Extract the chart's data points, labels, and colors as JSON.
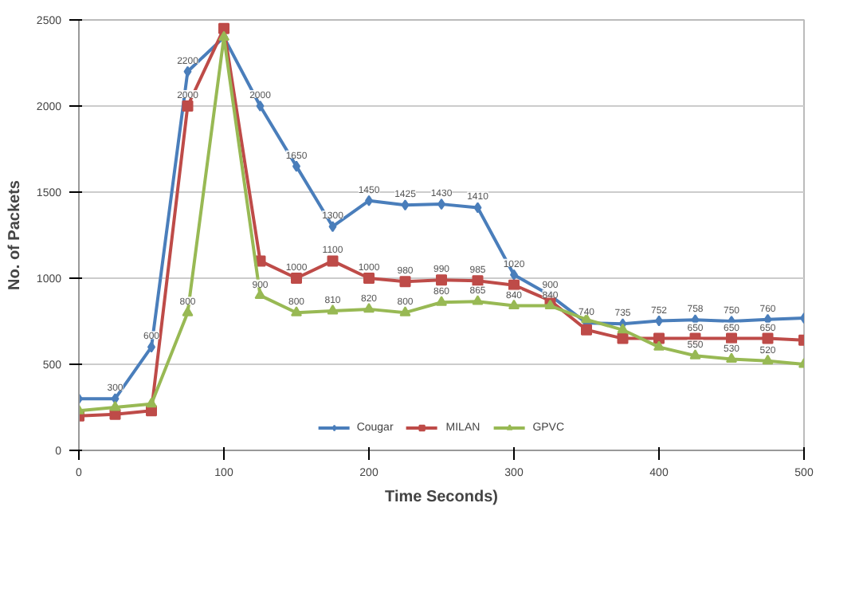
{
  "chart_data": {
    "type": "line",
    "xlabel": "Time Seconds)",
    "ylabel": "No. of Packets",
    "x": [
      0,
      25,
      50,
      75,
      100,
      125,
      150,
      175,
      200,
      225,
      250,
      275,
      300,
      325,
      350,
      375,
      400,
      425,
      450,
      475,
      500
    ],
    "xlim": [
      0,
      500
    ],
    "xticks": [
      0,
      100,
      200,
      300,
      400,
      500
    ],
    "ylim": [
      0,
      2500
    ],
    "yticks": [
      0,
      500,
      1000,
      1500,
      2000,
      2500
    ],
    "grid": "y",
    "legend": "bottom",
    "series": [
      {
        "name": "Cougar",
        "color": "#4a7ebb",
        "marker": "diamond",
        "values": [
          300,
          300,
          600,
          2200,
          2400,
          2000,
          1650,
          1300,
          1450,
          1425,
          1430,
          1410,
          1020,
          900,
          740,
          735,
          752,
          758,
          750,
          760,
          768
        ],
        "value_labels": [
          null,
          "300",
          "600",
          "2200",
          null,
          "2000",
          "1650",
          "1300",
          "1450",
          "1425",
          "1430",
          "1410",
          "1020",
          "900",
          "740",
          "735",
          "752",
          "758",
          "750",
          "760",
          null
        ]
      },
      {
        "name": "MILAN",
        "color": "#be4b48",
        "marker": "square",
        "values": [
          200,
          210,
          230,
          2000,
          2450,
          1100,
          1000,
          1100,
          1000,
          980,
          990,
          985,
          960,
          870,
          700,
          650,
          650,
          650,
          650,
          650,
          640
        ],
        "value_labels": [
          null,
          null,
          null,
          "2000",
          null,
          null,
          "1000",
          "1100",
          "1000",
          "980",
          "990",
          "985",
          null,
          null,
          null,
          null,
          null,
          "650",
          "650",
          "650",
          null
        ]
      },
      {
        "name": "GPVC",
        "color": "#98b954",
        "marker": "triangle",
        "values": [
          230,
          250,
          270,
          800,
          2400,
          900,
          800,
          810,
          820,
          800,
          860,
          865,
          840,
          840,
          760,
          700,
          600,
          550,
          530,
          520,
          500
        ],
        "value_labels": [
          null,
          null,
          null,
          "800",
          null,
          "900",
          "800",
          "810",
          "820",
          "800",
          "860",
          "865",
          "840",
          "840",
          null,
          null,
          null,
          "550",
          "530",
          "520",
          null
        ]
      }
    ]
  }
}
